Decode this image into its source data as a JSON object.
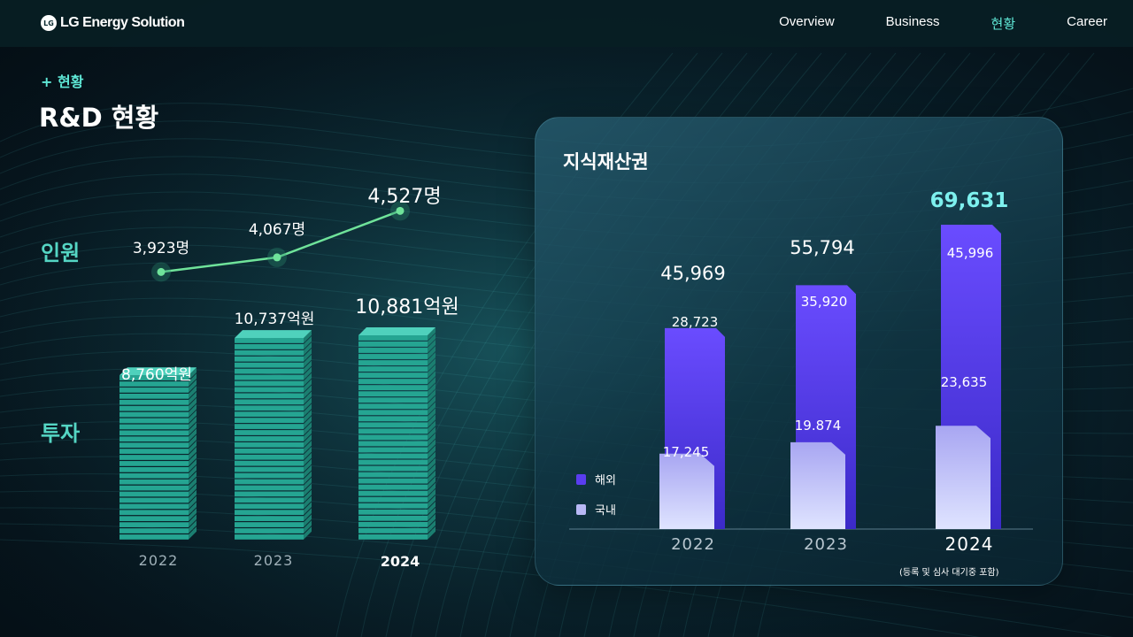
{
  "header": {
    "logo_mark": "LG",
    "logo_text": "LG Energy Solution",
    "nav": [
      {
        "label": "Overview",
        "active": false
      },
      {
        "label": "Business",
        "active": false
      },
      {
        "label": "현황",
        "active": true
      },
      {
        "label": "Career",
        "active": false
      }
    ]
  },
  "page": {
    "crumb": "+ 현황",
    "title": "R&D 현황"
  },
  "left": {
    "people_label": "인원",
    "invest_label": "투자",
    "years": [
      "2022",
      "2023",
      "2024"
    ],
    "people": [
      "3,923명",
      "4,067명",
      "4,527명"
    ],
    "invest": [
      "8,760억원",
      "10,737억원",
      "10,881억원"
    ]
  },
  "chart_data": [
    {
      "type": "line",
      "ylabel": "인원",
      "categories": [
        "2022",
        "2023",
        "2024"
      ],
      "values": [
        3923,
        4067,
        4527
      ],
      "data_labels": [
        "3,923명",
        "4,067명",
        "4,527명"
      ]
    },
    {
      "type": "bar",
      "ylabel": "투자",
      "categories": [
        "2022",
        "2023",
        "2024"
      ],
      "values": [
        8760,
        10737,
        10881
      ],
      "data_labels": [
        "8,760억원",
        "10,737억원",
        "10,881억원"
      ]
    },
    {
      "type": "bar",
      "title": "지식재산권",
      "categories": [
        "2022",
        "2023",
        "2024"
      ],
      "series": [
        {
          "name": "해외",
          "values": [
            28723,
            35920,
            45996
          ],
          "labels": [
            "28,723",
            "35,920",
            "45,996"
          ],
          "color": "#5a3df0"
        },
        {
          "name": "국내",
          "values": [
            17245,
            19874,
            23635
          ],
          "labels": [
            "17,245",
            "19.874",
            "23,635"
          ],
          "color": "#b8b8f5"
        }
      ],
      "totals": [
        45969,
        55794,
        69631
      ],
      "total_labels": [
        "45,969",
        "55,794",
        "69,631"
      ],
      "legend": "bottom-left",
      "note": "(등록 및 심사 대기중 포함)"
    }
  ],
  "colors": {
    "accent": "#5fe8d6",
    "invest_bar": "#2fb7a3",
    "line": "#6fe39a",
    "overseas": "#5a3df0",
    "domestic": "#b8b8f5",
    "highlight_total": "#7df0ee"
  }
}
